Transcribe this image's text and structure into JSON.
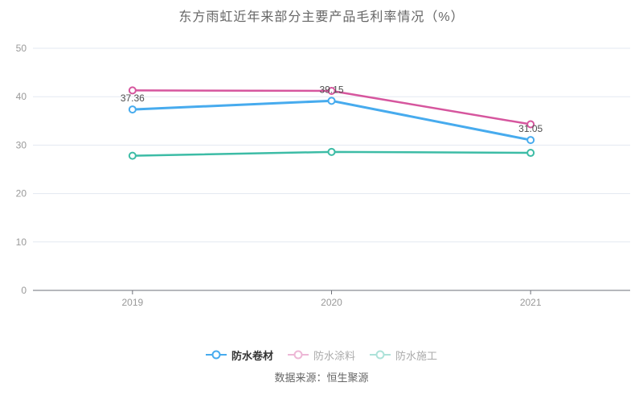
{
  "title": "东方雨虹近年来部分主要产品毛利率情况（%）",
  "source": "数据来源：恒生聚源",
  "colors": {
    "grid_line": "#e3e8f1",
    "axis_line": "#6e7079",
    "axis_label": "#999999",
    "data_label": "#4e4e4e",
    "title_text": "#666666",
    "background": "#ffffff"
  },
  "chart_data": {
    "type": "line",
    "categories": [
      "2019",
      "2020",
      "2021"
    ],
    "series": [
      {
        "name": "防水卷材",
        "values": [
          37.36,
          39.15,
          31.05
        ],
        "labels": [
          "37.36",
          "39.15",
          "31.05"
        ],
        "show_labels": true,
        "emphasized": true,
        "color": "#47abee",
        "line_width": 3
      },
      {
        "name": "防水涂料",
        "values": [
          41.3,
          41.2,
          34.3
        ],
        "labels": [],
        "show_labels": false,
        "emphasized": false,
        "color": "#d6569e",
        "line_width": 2.5
      },
      {
        "name": "防水施工",
        "values": [
          27.8,
          28.6,
          28.4
        ],
        "labels": [],
        "show_labels": false,
        "emphasized": false,
        "color": "#3dbca6",
        "line_width": 2.5
      }
    ],
    "ylim": [
      0,
      50
    ],
    "yticks": [
      0,
      10,
      20,
      30,
      40,
      50
    ],
    "grid": true,
    "legend_position": "bottom",
    "marker": "hollow-circle"
  }
}
